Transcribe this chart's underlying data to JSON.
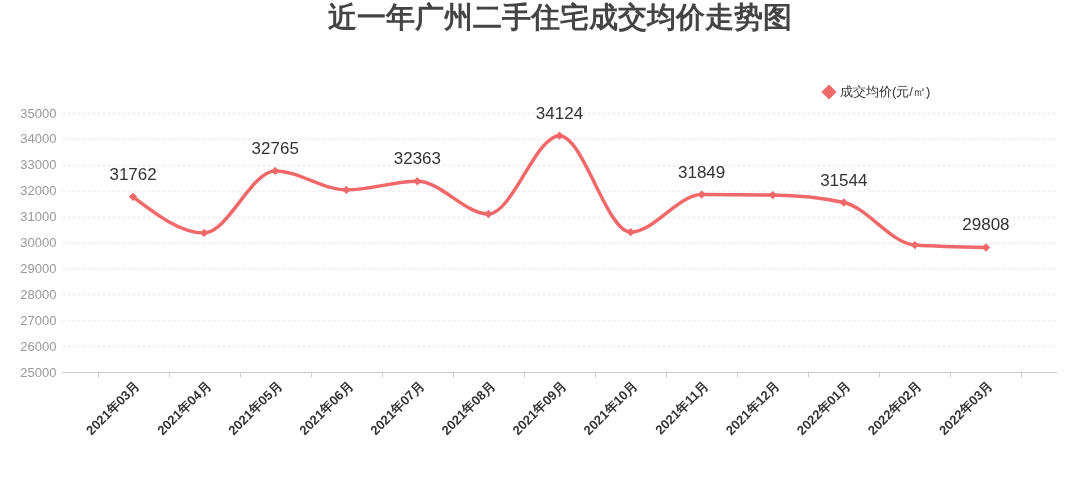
{
  "chart_data": {
    "type": "line",
    "title": "近一年广州二手住宅成交均价走势图",
    "categories": [
      "2021年03月",
      "2021年04月",
      "2021年05月",
      "2021年06月",
      "2021年07月",
      "2021年08月",
      "2021年09月",
      "2021年10月",
      "2021年11月",
      "2021年12月",
      "2022年01月",
      "2022年02月",
      "2022年03月"
    ],
    "series": [
      {
        "name": "成交均价(元/㎡)",
        "color": "#f0686a",
        "values": [
          31762,
          30370,
          32765,
          32030,
          32363,
          31100,
          34124,
          30400,
          31849,
          31830,
          31544,
          29900,
          29808
        ],
        "value_labels": [
          "31762",
          null,
          "32765",
          null,
          "32363",
          null,
          "34124",
          null,
          "31849",
          null,
          "31544",
          null,
          "29808"
        ]
      }
    ],
    "ylim": [
      25000,
      35000
    ],
    "yticks": [
      25000,
      26000,
      27000,
      28000,
      29000,
      30000,
      31000,
      32000,
      33000,
      34000,
      35000
    ],
    "grid": "y",
    "legend": "top right",
    "marker": "diamond",
    "line_style": "solid"
  }
}
